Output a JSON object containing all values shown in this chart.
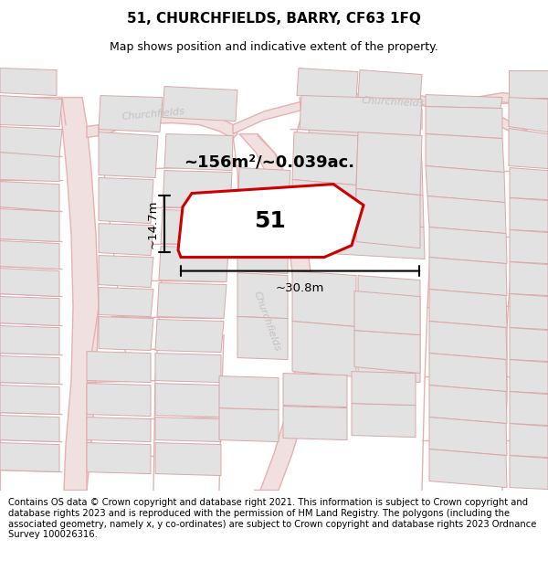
{
  "title": "51, CHURCHFIELDS, BARRY, CF63 1FQ",
  "subtitle": "Map shows position and indicative extent of the property.",
  "footer": "Contains OS data © Crown copyright and database right 2021. This information is subject to Crown copyright and database rights 2023 and is reproduced with the permission of HM Land Registry. The polygons (including the associated geometry, namely x, y co-ordinates) are subject to Crown copyright and database rights 2023 Ordnance Survey 100026316.",
  "area_label": "~156m²/~0.039ac.",
  "dim_width": "~30.8m",
  "dim_height": "~14.7m",
  "plot_number": "51",
  "bg_color": "#f8f6f6",
  "building_fill": "#e2e2e2",
  "building_edge": "#d8a8a8",
  "road_line_color": "#e8b0b0",
  "road_fill": "#f0e0e0",
  "highlight_color": "#cc0000",
  "street_label_color": "#c8c0c0",
  "title_fontsize": 11,
  "subtitle_fontsize": 9,
  "footer_fontsize": 7.2,
  "area_fontsize": 13,
  "plot_num_fontsize": 18,
  "dim_fontsize": 9.5
}
